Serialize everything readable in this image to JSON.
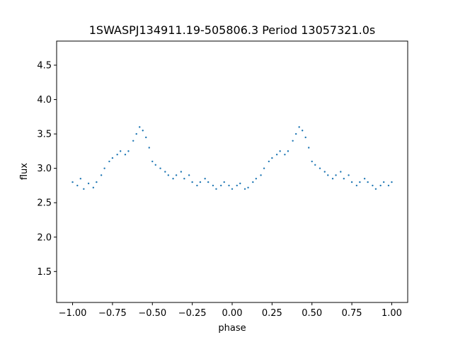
{
  "chart_data": {
    "type": "scatter",
    "title": "1SWASPJ134911.19-505806.3 Period 13057321.0s",
    "xlabel": "phase",
    "ylabel": "flux",
    "xlim": [
      -1.1,
      1.1
    ],
    "ylim": [
      1.05,
      4.85
    ],
    "grid": false,
    "legend": "none",
    "marker_color": "#1f77b4",
    "x_ticks": [
      -1.0,
      -0.75,
      -0.5,
      -0.25,
      0.0,
      0.25,
      0.5,
      0.75,
      1.0
    ],
    "x_tick_labels": [
      "−1.00",
      "−0.75",
      "−0.50",
      "−0.25",
      "0.00",
      "0.25",
      "0.50",
      "0.75",
      "1.00"
    ],
    "y_ticks": [
      1.5,
      2.0,
      2.5,
      3.0,
      3.5,
      4.0,
      4.5
    ],
    "y_tick_labels": [
      "1.5",
      "2.0",
      "2.5",
      "3.0",
      "3.5",
      "4.0",
      "4.5"
    ],
    "series": [
      {
        "x": [
          -1.0,
          -0.97,
          -0.95,
          -0.93,
          -0.9,
          -0.87,
          -0.85,
          -0.82,
          -0.8,
          -0.77,
          -0.75,
          -0.72,
          -0.7,
          -0.67,
          -0.65,
          -0.62,
          -0.6,
          -0.58,
          -0.56,
          -0.54,
          -0.52,
          -0.5,
          -0.48,
          -0.45,
          -0.42,
          -0.4,
          -0.37,
          -0.35,
          -0.32,
          -0.3,
          -0.27,
          -0.25,
          -0.22,
          -0.2,
          -0.17,
          -0.15,
          -0.12,
          -0.1,
          -0.07,
          -0.05,
          -0.02,
          0.0,
          0.03,
          0.05,
          0.08,
          0.1,
          0.13,
          0.15,
          0.18,
          0.2,
          0.23,
          0.25,
          0.28,
          0.3,
          0.33,
          0.35,
          0.38,
          0.4,
          0.42,
          0.44,
          0.46,
          0.48,
          0.5,
          0.52,
          0.55,
          0.58,
          0.6,
          0.63,
          0.65,
          0.68,
          0.7,
          0.73,
          0.75,
          0.78,
          0.8,
          0.83,
          0.85,
          0.88,
          0.9,
          0.93,
          0.95,
          0.98,
          1.0
        ],
        "y": [
          2.8,
          2.75,
          2.85,
          2.7,
          2.78,
          2.72,
          2.8,
          2.9,
          3.0,
          3.1,
          3.15,
          3.2,
          3.25,
          3.2,
          3.25,
          3.4,
          3.5,
          3.6,
          3.55,
          3.45,
          3.3,
          3.1,
          3.05,
          3.0,
          2.95,
          2.9,
          2.85,
          2.9,
          2.95,
          2.85,
          2.9,
          2.8,
          2.75,
          2.8,
          2.85,
          2.8,
          2.75,
          2.7,
          2.75,
          2.8,
          2.75,
          2.7,
          2.75,
          2.78,
          2.7,
          2.72,
          2.8,
          2.85,
          2.9,
          3.0,
          3.1,
          3.15,
          3.2,
          3.25,
          3.2,
          3.25,
          3.4,
          3.5,
          3.6,
          3.55,
          3.45,
          3.3,
          3.1,
          3.05,
          3.0,
          2.95,
          2.9,
          2.85,
          2.9,
          2.95,
          2.85,
          2.9,
          2.8,
          2.75,
          2.8,
          2.85,
          2.8,
          2.75,
          2.7,
          2.75,
          2.8,
          2.75,
          2.8
        ]
      }
    ]
  }
}
